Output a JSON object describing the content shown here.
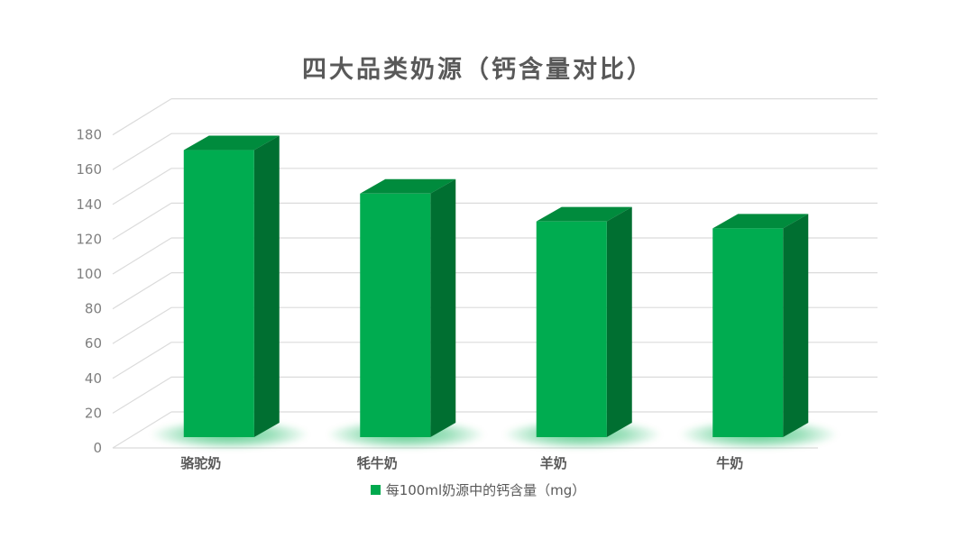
{
  "title": "四大品类奶源（钙含量对比）",
  "legend": {
    "label": "每100ml奶源中的钙含量（mg）",
    "marker_color": "#00A94E"
  },
  "chart_data": {
    "type": "bar",
    "projection": "3d",
    "title": "四大品类奶源（钙含量对比）",
    "categories": [
      "骆驼奶",
      "牦牛奶",
      "羊奶",
      "牛奶"
    ],
    "series": [
      {
        "name": "每100ml奶源中的钙含量（mg）",
        "values": [
          165,
          140,
          124,
          120
        ]
      }
    ],
    "xlabel": "",
    "ylabel": "",
    "ylim": [
      0,
      180
    ],
    "ytick_step": 20,
    "yticks": [
      0,
      20,
      40,
      60,
      80,
      100,
      120,
      140,
      160,
      180
    ],
    "grid": true,
    "legend_position": "bottom",
    "colors": {
      "bar_front": "#00AC50",
      "bar_top": "#008B3D",
      "bar_side": "#006F31",
      "bar_glow": "#00B050",
      "gridline": "#DBDBDB",
      "axis_text": "#7F7F7F",
      "category_text": "#595959",
      "title_text": "#595959",
      "background": "#FFFFFF"
    }
  }
}
